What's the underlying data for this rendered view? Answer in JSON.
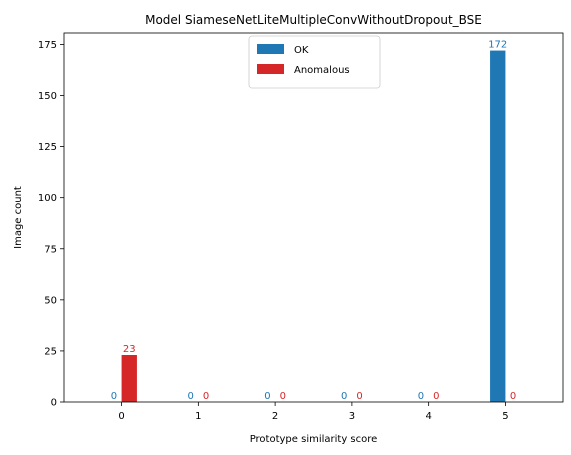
{
  "chart_data": {
    "type": "bar",
    "title": "Model SiameseNetLiteMultipleConvWithoutDropout_BSE",
    "xlabel": "Prototype similarity score",
    "ylabel": "Image count",
    "categories": [
      "0",
      "1",
      "2",
      "3",
      "4",
      "5"
    ],
    "x": [
      0,
      1,
      2,
      3,
      4,
      5
    ],
    "xlim": [
      -0.75,
      5.75
    ],
    "ylim": [
      0,
      180.6
    ],
    "yticks": [
      0,
      25,
      50,
      75,
      100,
      125,
      150,
      175
    ],
    "grid": false,
    "legend_position": "top-center",
    "series": [
      {
        "name": "OK",
        "color": "#1f77b4",
        "values": [
          0,
          0,
          0,
          0,
          0,
          172
        ],
        "labels": [
          "0",
          "0",
          "0",
          "0",
          "0",
          "172"
        ]
      },
      {
        "name": "Anomalous",
        "color": "#d62728",
        "values": [
          23,
          0,
          0,
          0,
          0,
          0
        ],
        "labels": [
          "23",
          "0",
          "0",
          "0",
          "0",
          "0"
        ]
      }
    ]
  }
}
